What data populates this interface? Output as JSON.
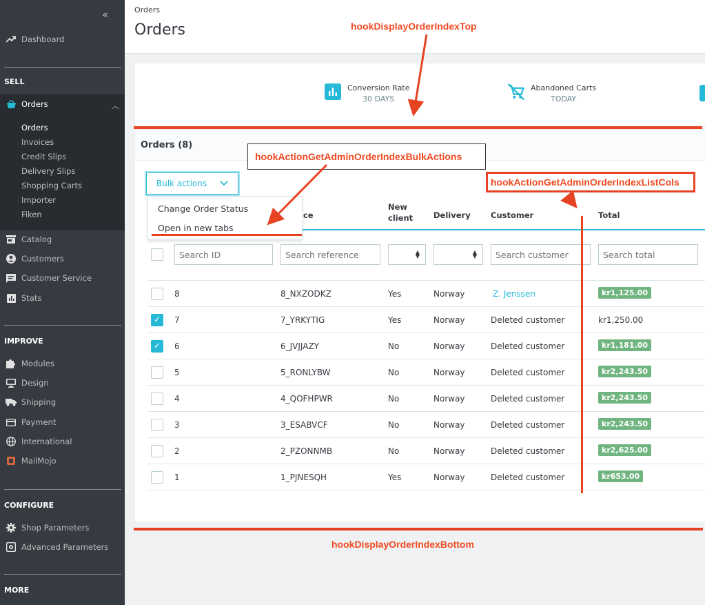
{
  "sidebar": {
    "collapse": "«",
    "dashboard": "Dashboard",
    "sections": {
      "sell": "SELL",
      "improve": "IMPROVE",
      "configure": "CONFIGURE",
      "more": "MORE"
    },
    "orders": "Orders",
    "orders_sub": [
      "Orders",
      "Invoices",
      "Credit Slips",
      "Delivery Slips",
      "Shopping Carts",
      "Importer",
      "Fiken"
    ],
    "sell_items": [
      "Catalog",
      "Customers",
      "Customer Service",
      "Stats"
    ],
    "improve_items": [
      "Modules",
      "Design",
      "Shipping",
      "Payment",
      "International",
      "MailMojo"
    ],
    "configure_items": [
      "Shop Parameters",
      "Advanced Parameters"
    ]
  },
  "header": {
    "breadcrumb": "Orders",
    "title": "Orders"
  },
  "kpi": [
    {
      "label": "Conversion Rate",
      "sub": "30 DAYS",
      "icon": "bar-chart-icon"
    },
    {
      "label": "Abandoned Carts",
      "sub": "TODAY",
      "icon": "cart-off-icon"
    }
  ],
  "panel": {
    "title": "Orders (8)"
  },
  "bulk": {
    "label": "Bulk actions",
    "items": [
      "Change Order Status",
      "Open in new tabs"
    ]
  },
  "table": {
    "headers": {
      "reference": "ence",
      "new_client": "New client",
      "new_client_l1": "New",
      "new_client_l2": "client",
      "delivery": "Delivery",
      "customer": "Customer",
      "total": "Total"
    },
    "filters": {
      "id": "Search ID",
      "reference": "Search reference",
      "customer": "Search customer",
      "total": "Search total"
    },
    "rows": [
      {
        "id": "8",
        "ref": "8_NXZODKZ",
        "new": "Yes",
        "delivery": "Norway",
        "customer": "Z. Jenssen",
        "total": "kr1,125.00",
        "checked": false,
        "badge": true,
        "link": true
      },
      {
        "id": "7",
        "ref": "7_YRKYTIG",
        "new": "Yes",
        "delivery": "Norway",
        "customer": "Deleted customer",
        "total": "kr1,250.00",
        "checked": true,
        "badge": false,
        "link": false
      },
      {
        "id": "6",
        "ref": "6_JVJJAZY",
        "new": "No",
        "delivery": "Norway",
        "customer": "Deleted customer",
        "total": "kr1,181.00",
        "checked": true,
        "badge": true,
        "link": false
      },
      {
        "id": "5",
        "ref": "5_RONLYBW",
        "new": "No",
        "delivery": "Norway",
        "customer": "Deleted customer",
        "total": "kr2,243.50",
        "checked": false,
        "badge": true,
        "link": false
      },
      {
        "id": "4",
        "ref": "4_QOFHPWR",
        "new": "No",
        "delivery": "Norway",
        "customer": "Deleted customer",
        "total": "kr2,243.50",
        "checked": false,
        "badge": true,
        "link": false
      },
      {
        "id": "3",
        "ref": "3_ESABVCF",
        "new": "No",
        "delivery": "Norway",
        "customer": "Deleted customer",
        "total": "kr2,243.50",
        "checked": false,
        "badge": true,
        "link": false
      },
      {
        "id": "2",
        "ref": "2_PZONNMB",
        "new": "No",
        "delivery": "Norway",
        "customer": "Deleted customer",
        "total": "kr2,625.00",
        "checked": false,
        "badge": true,
        "link": false
      },
      {
        "id": "1",
        "ref": "1_PJNESQH",
        "new": "Yes",
        "delivery": "Norway",
        "customer": "Deleted customer",
        "total": "kr653.00",
        "checked": false,
        "badge": true,
        "link": false
      }
    ]
  },
  "annotations": {
    "top": "hookDisplayOrderIndexTop",
    "bulk": "hookActionGetAdminOrderIndexBulkActions",
    "cols": "hookActionGetAdminOrderIndexListCols",
    "bottom": "hookDisplayOrderIndexBottom"
  },
  "colors": {
    "accent": "#25b9d7",
    "badge": "#70b580",
    "annotation": "#e64323",
    "sidebar": "#363a41"
  }
}
